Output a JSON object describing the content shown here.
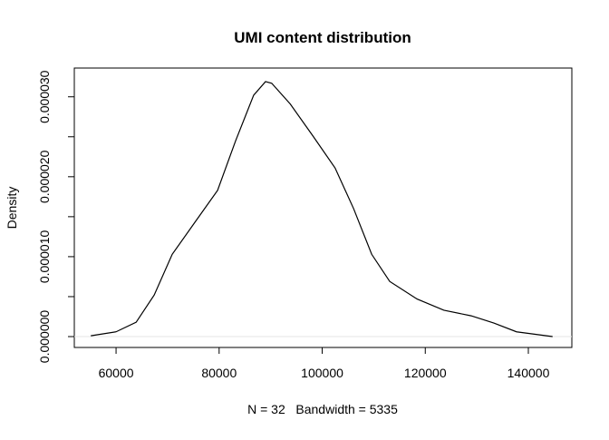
{
  "chart_data": {
    "type": "line",
    "title": "UMI content distribution",
    "x_label": "N = 32   Bandwidth = 5335",
    "y_label": "Density",
    "series": [
      {
        "color": "#000000",
        "x": [
          55100,
          60000,
          63900,
          67400,
          70900,
          75300,
          79700,
          83200,
          86700,
          89000,
          90200,
          93800,
          98200,
          102500,
          106100,
          109600,
          113100,
          118400,
          123600,
          128900,
          133300,
          137700,
          144700
        ],
        "values": [
          1e-07,
          6e-07,
          1.8e-06,
          5.2e-06,
          1.03e-05,
          1.43e-05,
          1.83e-05,
          2.45e-05,
          3.02e-05,
          3.19e-05,
          3.17e-05,
          2.91e-05,
          2.51e-05,
          2.11e-05,
          1.6e-05,
          1.03e-05,
          6.9e-06,
          4.7e-06,
          3.3e-06,
          2.6e-06,
          1.7e-06,
          6e-07,
          0
        ]
      }
    ],
    "xlim": [
      51900,
      148440
    ],
    "ylim": [
      -1.36e-06,
      3.36e-05
    ],
    "xticks": [
      60000,
      80000,
      100000,
      120000,
      140000
    ],
    "yticks": [
      {
        "value": 0,
        "label": "0.000000"
      },
      {
        "value": 5e-06,
        "label": null
      },
      {
        "value": 1e-05,
        "label": "0.000010"
      },
      {
        "value": 1.5e-05,
        "label": null
      },
      {
        "value": 2e-05,
        "label": "0.000020"
      },
      {
        "value": 2.5e-05,
        "label": null
      },
      {
        "value": 3e-05,
        "label": "0.000030"
      }
    ],
    "zero_line": true,
    "zero_line_color": "#e6e6e6"
  }
}
